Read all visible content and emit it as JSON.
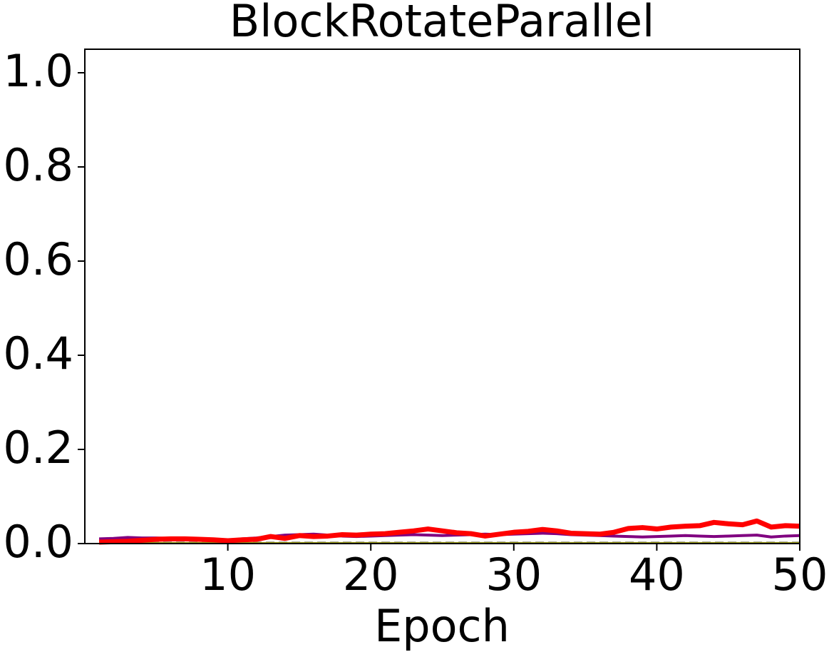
{
  "chart_data": {
    "type": "line",
    "title": "BlockRotateParallel",
    "xlabel": "Epoch",
    "x": [
      1,
      2,
      3,
      4,
      5,
      6,
      7,
      8,
      9,
      10,
      11,
      12,
      13,
      14,
      15,
      16,
      17,
      18,
      19,
      20,
      21,
      22,
      23,
      24,
      25,
      26,
      27,
      28,
      29,
      30,
      31,
      32,
      33,
      34,
      35,
      36,
      37,
      38,
      39,
      40,
      41,
      42,
      43,
      44,
      45,
      46,
      47,
      48,
      49,
      50
    ],
    "series": [
      {
        "color": "#9b9b9b",
        "dash": true,
        "width": 3,
        "values": [
          0.002,
          0.002,
          0.002,
          0.002,
          0.002,
          0.002,
          0.002,
          0.002,
          0.002,
          0.002,
          0.002,
          0.002,
          0.002,
          0.002,
          0.002,
          0.002,
          0.002,
          0.002,
          0.002,
          0.002,
          0.002,
          0.002,
          0.002,
          0.002,
          0.002,
          0.002,
          0.002,
          0.002,
          0.002,
          0.002,
          0.002,
          0.002,
          0.002,
          0.002,
          0.002,
          0.002,
          0.002,
          0.002,
          0.002,
          0.002,
          0.002,
          0.002,
          0.002,
          0.002,
          0.002,
          0.002,
          0.002,
          0.002,
          0.002,
          0.002
        ]
      },
      {
        "color": "#9a9a10",
        "dash": false,
        "width": 3,
        "values": [
          0.001,
          0.001,
          0.001,
          0.001,
          0.001,
          0.001,
          0.001,
          0.001,
          0.001,
          0.001,
          0.001,
          0.001,
          0.001,
          0.001,
          0.001,
          0.001,
          0.001,
          0.001,
          0.001,
          0.001,
          0.001,
          0.001,
          0.001,
          0.001,
          0.001,
          0.001,
          0.001,
          0.001,
          0.001,
          0.001,
          0.001,
          0.001,
          0.001,
          0.001,
          0.001,
          0.001,
          0.001,
          0.001,
          0.001,
          0.001,
          0.001,
          0.001,
          0.001,
          0.001,
          0.001,
          0.001,
          0.001,
          0.001,
          0.001,
          0.001
        ]
      },
      {
        "color": "#800080",
        "dash": false,
        "width": 4,
        "values": [
          0.01,
          0.011,
          0.013,
          0.012,
          0.012,
          0.011,
          0.01,
          0.009,
          0.008,
          0.007,
          0.01,
          0.012,
          0.015,
          0.018,
          0.019,
          0.02,
          0.018,
          0.016,
          0.015,
          0.016,
          0.017,
          0.018,
          0.019,
          0.018,
          0.017,
          0.018,
          0.019,
          0.02,
          0.019,
          0.02,
          0.021,
          0.022,
          0.021,
          0.019,
          0.018,
          0.017,
          0.016,
          0.015,
          0.014,
          0.015,
          0.016,
          0.017,
          0.016,
          0.015,
          0.016,
          0.017,
          0.018,
          0.014,
          0.016,
          0.017
        ]
      },
      {
        "color": "#ff0000",
        "dash": false,
        "width": 7,
        "values": [
          0.003,
          0.004,
          0.005,
          0.007,
          0.009,
          0.01,
          0.01,
          0.009,
          0.008,
          0.006,
          0.008,
          0.009,
          0.015,
          0.011,
          0.017,
          0.015,
          0.016,
          0.019,
          0.018,
          0.02,
          0.021,
          0.024,
          0.027,
          0.031,
          0.027,
          0.023,
          0.021,
          0.016,
          0.02,
          0.024,
          0.026,
          0.03,
          0.027,
          0.022,
          0.021,
          0.02,
          0.024,
          0.032,
          0.034,
          0.031,
          0.035,
          0.037,
          0.038,
          0.045,
          0.042,
          0.04,
          0.048,
          0.035,
          0.038,
          0.037
        ]
      }
    ],
    "xlim": [
      0,
      50
    ],
    "xticks": [
      10,
      20,
      30,
      40,
      50
    ],
    "ylim": [
      0,
      1.05
    ],
    "yticks": [
      {
        "value": 0,
        "label": "0.0"
      },
      0.2,
      0.4,
      0.6,
      0.8,
      {
        "value": 1,
        "label": "1.0"
      }
    ],
    "grid": false
  }
}
